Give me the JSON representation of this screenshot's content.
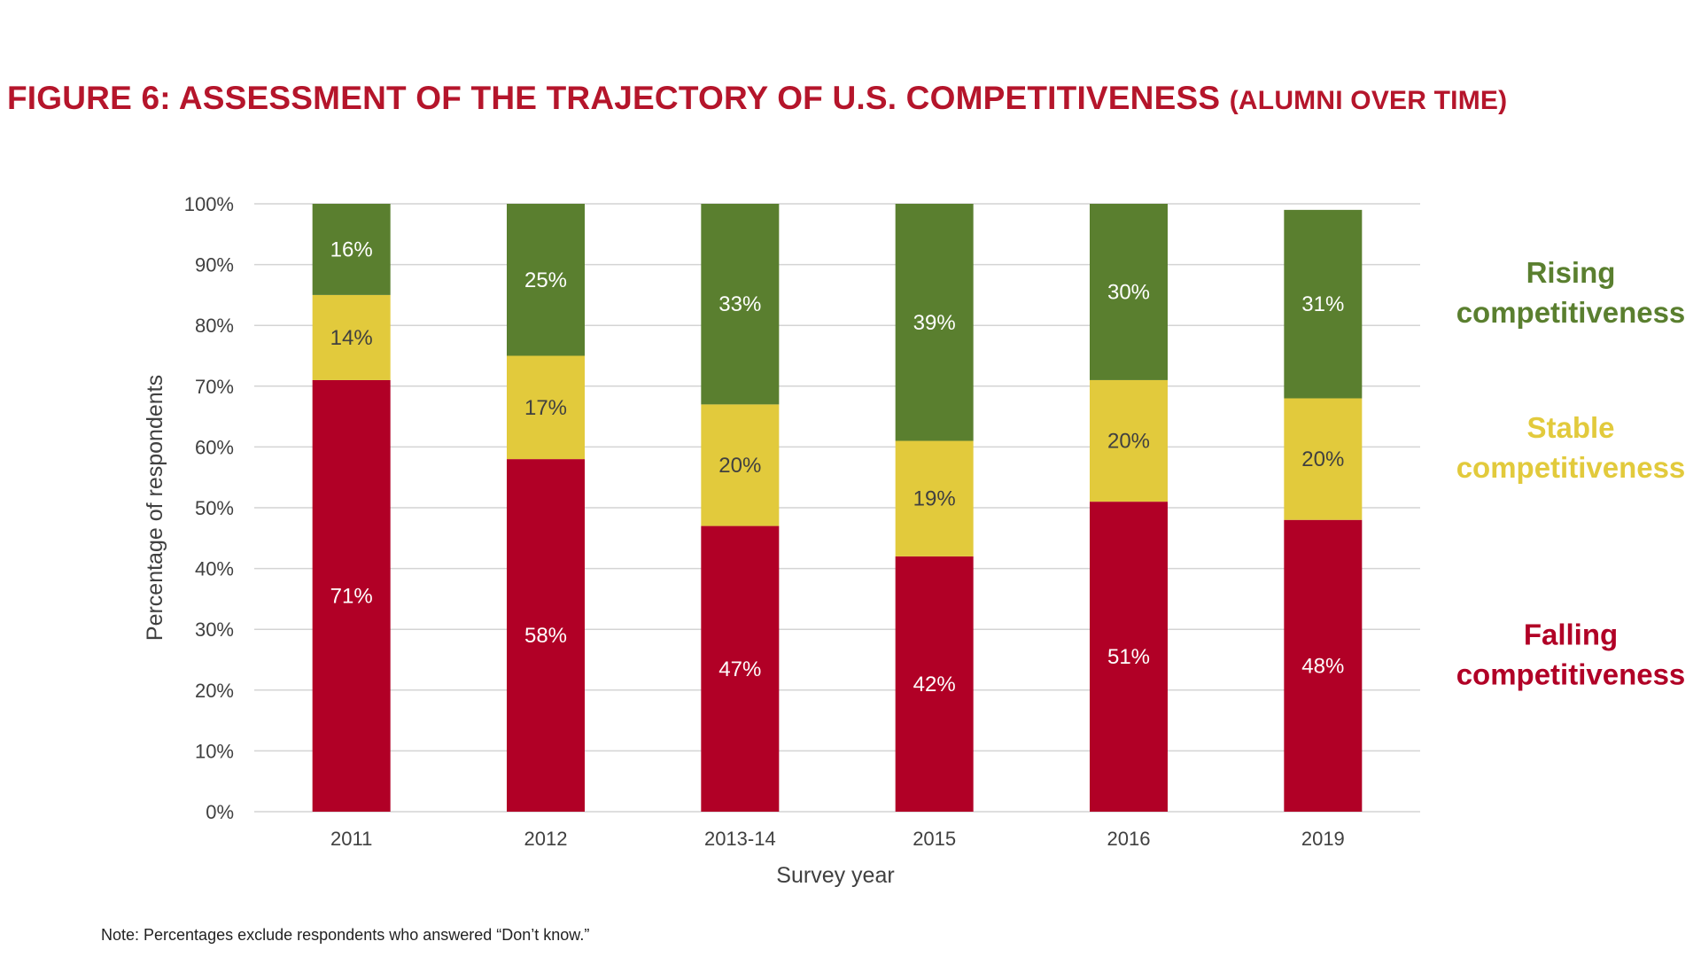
{
  "figure": {
    "title_main": "FIGURE 6: ASSESSMENT OF THE TRAJECTORY OF U.S. COMPETITIVENESS",
    "title_sub": "(ALUMNI OVER TIME)",
    "note": "Note: Percentages exclude respondents who answered “Don’t know.”"
  },
  "chart_data": {
    "type": "bar",
    "stacked": true,
    "categories": [
      "2011",
      "2012",
      "2013-14",
      "2015",
      "2016",
      "2019"
    ],
    "series": [
      {
        "name": "Falling competitiveness",
        "legend_lines": [
          "Falling",
          "competitiveness"
        ],
        "color": "#b10026",
        "label_color": "#ffffff",
        "values": [
          71,
          58,
          47,
          42,
          51,
          48
        ]
      },
      {
        "name": "Stable competitiveness",
        "legend_lines": [
          "Stable",
          "competitiveness"
        ],
        "color": "#e2ca3c",
        "label_color": "#404040",
        "values": [
          14,
          17,
          20,
          19,
          20,
          20
        ]
      },
      {
        "name": "Rising competitiveness",
        "legend_lines": [
          "Rising",
          "competitiveness"
        ],
        "color": "#5a7f2f",
        "label_color": "#ffffff",
        "values": [
          16,
          25,
          33,
          39,
          30,
          31
        ]
      }
    ],
    "xlabel": "Survey year",
    "ylabel": "Percentage of respondents",
    "ylim": [
      0,
      100
    ],
    "yticks": [
      0,
      10,
      20,
      30,
      40,
      50,
      60,
      70,
      80,
      90,
      100
    ],
    "ytick_suffix": "%",
    "grid": true,
    "legend_position": "right"
  }
}
